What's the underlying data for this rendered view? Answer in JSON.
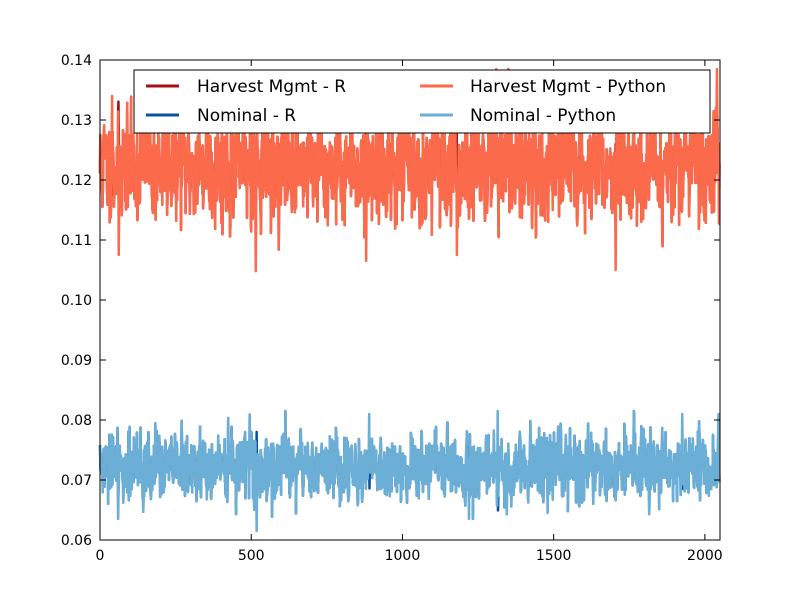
{
  "chart_data": {
    "type": "line",
    "title": "",
    "xlabel": "",
    "ylabel": "",
    "xlim": [
      0,
      2050
    ],
    "ylim": [
      0.06,
      0.14
    ],
    "x_ticks": [
      0,
      500,
      1000,
      1500,
      2000
    ],
    "y_ticks": [
      0.06,
      0.07,
      0.08,
      0.09,
      0.1,
      0.11,
      0.12,
      0.13,
      0.14
    ],
    "x_tick_labels": [
      "0",
      "500",
      "1000",
      "1500",
      "2000"
    ],
    "y_tick_labels": [
      "0.06",
      "0.07",
      "0.08",
      "0.09",
      "0.10",
      "0.11",
      "0.12",
      "0.13",
      "0.14"
    ],
    "grid": false,
    "legend_location": "upper center",
    "legend_columns": 2,
    "n_points": 2049,
    "series": [
      {
        "name": "Harvest Mgmt - R",
        "color": "#a50f15",
        "mean": 0.1223,
        "stdev": 0.0045,
        "min": 0.1048,
        "max": 0.1385,
        "drawn_under": "Harvest Mgmt - Python"
      },
      {
        "name": "Nominal - R",
        "color": "#08519c",
        "mean": 0.0721,
        "stdev": 0.0028,
        "min": 0.0615,
        "max": 0.0815,
        "drawn_under": "Nominal - Python"
      },
      {
        "name": "Harvest Mgmt - Python",
        "color": "#fb6a4a",
        "mean": 0.1223,
        "stdev": 0.0045,
        "min": 0.1048,
        "max": 0.1385,
        "extremes": [
          {
            "x": 40,
            "y": 0.134
          },
          {
            "x": 62,
            "y": 0.1075
          },
          {
            "x": 515,
            "y": 0.1048
          },
          {
            "x": 880,
            "y": 0.1065
          },
          {
            "x": 1180,
            "y": 0.1075
          },
          {
            "x": 1310,
            "y": 0.1385
          },
          {
            "x": 1705,
            "y": 0.105
          },
          {
            "x": 2040,
            "y": 0.1385
          }
        ]
      },
      {
        "name": "Nominal - Python",
        "color": "#6baed6",
        "mean": 0.0721,
        "stdev": 0.0028,
        "min": 0.0615,
        "max": 0.0815,
        "extremes": [
          {
            "x": 60,
            "y": 0.0635
          },
          {
            "x": 518,
            "y": 0.0615
          },
          {
            "x": 890,
            "y": 0.081
          },
          {
            "x": 1220,
            "y": 0.0635
          },
          {
            "x": 1315,
            "y": 0.0815
          },
          {
            "x": 1480,
            "y": 0.0645
          },
          {
            "x": 1925,
            "y": 0.081
          },
          {
            "x": 2045,
            "y": 0.081
          }
        ]
      }
    ]
  }
}
